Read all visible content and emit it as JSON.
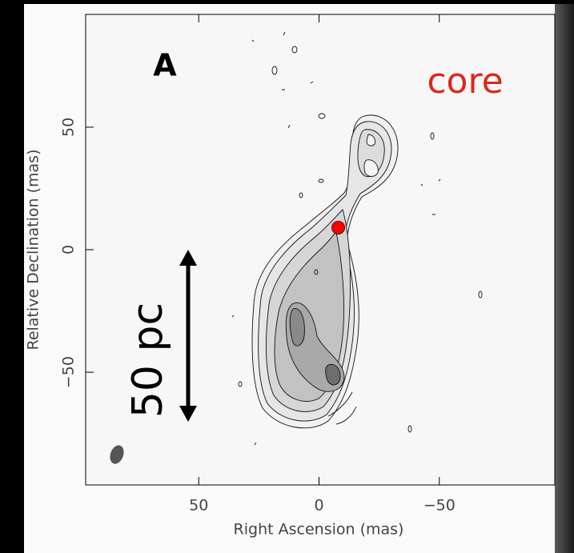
{
  "chart_data": {
    "type": "contour-image",
    "panel_label": "A",
    "annotation": "core",
    "scale_label": "50 pc",
    "x_label": "Right Ascension  (mas)",
    "y_label": "Relative Declination  (mas)",
    "xlim": [
      97,
      -97
    ],
    "ylim": [
      -96,
      96
    ],
    "xticks": [
      50,
      0,
      {
        "value": -50,
        "label": "−50"
      }
    ],
    "yticks": [
      50,
      0,
      {
        "value": -50,
        "label": "−50"
      }
    ],
    "core": {
      "x": -8,
      "y": 9,
      "color": "#ff0000"
    }
  }
}
